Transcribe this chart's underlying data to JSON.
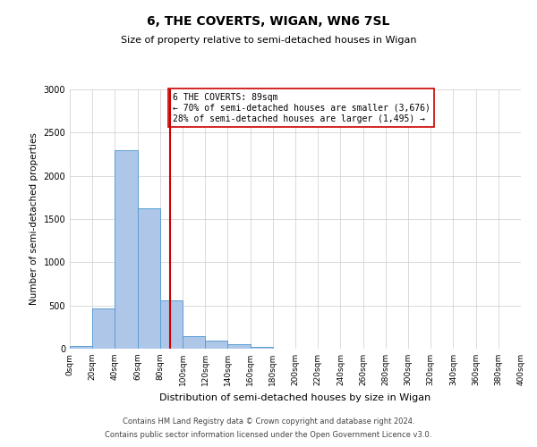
{
  "title": "6, THE COVERTS, WIGAN, WN6 7SL",
  "subtitle": "Size of property relative to semi-detached houses in Wigan",
  "xlabel": "Distribution of semi-detached houses by size in Wigan",
  "ylabel": "Number of semi-detached properties",
  "bar_color": "#aec6e8",
  "bar_edge_color": "#5a9fd4",
  "bin_edges": [
    0,
    20,
    40,
    60,
    80,
    100,
    120,
    140,
    160,
    180,
    200,
    220,
    240,
    260,
    280,
    300,
    320,
    340,
    360,
    380,
    400
  ],
  "bin_labels": [
    "0sqm",
    "20sqm",
    "40sqm",
    "60sqm",
    "80sqm",
    "100sqm",
    "120sqm",
    "140sqm",
    "160sqm",
    "180sqm",
    "200sqm",
    "220sqm",
    "240sqm",
    "260sqm",
    "280sqm",
    "300sqm",
    "320sqm",
    "340sqm",
    "360sqm",
    "380sqm",
    "400sqm"
  ],
  "bar_heights": [
    30,
    470,
    2300,
    1620,
    560,
    150,
    90,
    50,
    20,
    0,
    0,
    0,
    0,
    0,
    0,
    0,
    0,
    0,
    0,
    0
  ],
  "property_size": 89,
  "vline_color": "#cc0000",
  "annotation_text": "6 THE COVERTS: 89sqm\n← 70% of semi-detached houses are smaller (3,676)\n28% of semi-detached houses are larger (1,495) →",
  "annotation_box_color": "#ffffff",
  "annotation_box_edge": "#cc0000",
  "ylim": [
    0,
    3000
  ],
  "footer_line1": "Contains HM Land Registry data © Crown copyright and database right 2024.",
  "footer_line2": "Contains public sector information licensed under the Open Government Licence v3.0.",
  "background_color": "#ffffff",
  "grid_color": "#cccccc"
}
